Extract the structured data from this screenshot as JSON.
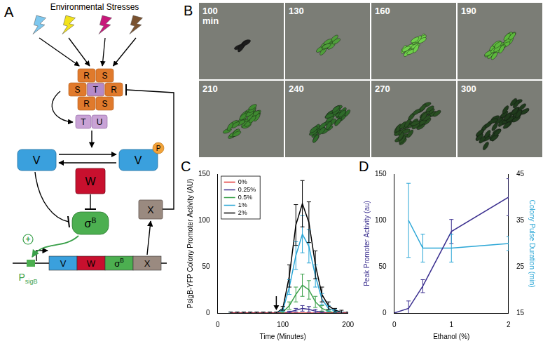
{
  "panels": {
    "A": {
      "label": "A",
      "title": "Environmental Stresses",
      "complex": [
        [
          "R",
          "S"
        ],
        [
          "S",
          "T",
          "R"
        ],
        [
          "R",
          "S"
        ]
      ],
      "partner": [
        "T",
        "U"
      ],
      "V": "V",
      "V_p": "V",
      "phosphate": "P",
      "W": "W",
      "X": "X",
      "sigma": {
        "text": "σ",
        "sup": "B"
      },
      "activation": "+",
      "promoter": {
        "text": "P",
        "sub": "sigB"
      },
      "genes": [
        {
          "text": "V"
        },
        {
          "text": "W"
        },
        {
          "text": "σ",
          "sup": "B"
        },
        {
          "text": "X"
        }
      ]
    },
    "B": {
      "label": "B",
      "frames": [
        "100 min",
        "130",
        "160",
        "190",
        "210",
        "240",
        "270",
        "300"
      ]
    },
    "C": {
      "label": "C"
    },
    "D": {
      "label": "D"
    }
  },
  "chart_data": [
    {
      "type": "line",
      "panel": "C",
      "x_label": "Time (Minutes)",
      "y_label": "PsigB-YFP Colony Promoter Activity (AU)",
      "x": [
        20,
        30,
        40,
        50,
        60,
        70,
        80,
        90,
        100,
        110,
        120,
        130,
        140,
        150,
        160,
        170,
        180,
        190,
        200
      ],
      "series": [
        {
          "name": "0%",
          "color": "#e03030",
          "values": [
            0,
            0,
            0,
            0,
            0,
            0,
            0,
            0,
            0,
            0,
            0,
            0,
            0,
            0,
            0,
            0,
            0,
            0,
            0
          ],
          "errors": [
            0,
            0,
            0,
            0,
            0,
            0,
            0,
            0,
            0,
            0,
            0,
            0,
            0,
            0,
            0,
            0,
            0,
            0,
            0
          ]
        },
        {
          "name": "0.25%",
          "color": "#3b2f8f",
          "values": [
            0,
            0,
            0,
            0,
            0,
            0,
            0,
            0,
            0,
            1,
            3,
            5,
            4,
            2,
            1,
            0,
            0,
            0,
            0
          ],
          "errors": [
            0,
            0,
            0,
            0,
            0,
            0,
            0,
            0,
            0,
            1,
            2,
            3,
            3,
            2,
            1,
            0,
            0,
            0,
            0
          ]
        },
        {
          "name": "0.5%",
          "color": "#3aa04a",
          "values": [
            0,
            0,
            0,
            0,
            0,
            0,
            0,
            0,
            1,
            8,
            20,
            30,
            25,
            12,
            5,
            2,
            0,
            0,
            0
          ],
          "errors": [
            0,
            0,
            0,
            0,
            0,
            0,
            0,
            0,
            1,
            4,
            8,
            12,
            10,
            6,
            3,
            1,
            1,
            0,
            0
          ]
        },
        {
          "name": "1%",
          "color": "#2aa6d6",
          "values": [
            0,
            0,
            0,
            0,
            0,
            0,
            0,
            0,
            3,
            28,
            62,
            85,
            72,
            40,
            15,
            5,
            2,
            0,
            0
          ],
          "errors": [
            1,
            1,
            1,
            1,
            1,
            1,
            1,
            1,
            1,
            8,
            15,
            20,
            18,
            12,
            6,
            3,
            2,
            1,
            1
          ]
        },
        {
          "name": "2%",
          "color": "#000000",
          "values": [
            0,
            0,
            0,
            0,
            0,
            0,
            0,
            0,
            5,
            40,
            95,
            118,
            98,
            52,
            20,
            8,
            3,
            1,
            0
          ],
          "errors": [
            1,
            1,
            1,
            1,
            1,
            1,
            1,
            1,
            2,
            12,
            22,
            25,
            22,
            15,
            8,
            4,
            2,
            2,
            1
          ]
        }
      ],
      "arrow": {
        "x": 90,
        "y": 3
      },
      "xlim": [
        0,
        200
      ],
      "xticks": [
        0,
        100,
        200
      ],
      "ylim": [
        0,
        150
      ],
      "yticks": [
        0,
        50,
        100,
        150
      ],
      "grid": false,
      "legend": "upper left"
    },
    {
      "type": "line",
      "panel": "D",
      "x_label": "Ethanol (%)",
      "y_label": "Peak Promoter Activity (au)",
      "y2_label": "Colony Pulse Duration (min)",
      "series": [
        {
          "color": "#3b2f8f",
          "axis": "y",
          "x": [
            0,
            0.25,
            0.5,
            1,
            2
          ],
          "values": [
            0,
            5,
            29,
            88,
            125
          ],
          "errors": [
            0,
            8,
            7,
            13,
            20
          ]
        },
        {
          "color": "#2aa6d6",
          "axis": "y2",
          "x": [
            0.25,
            0.5,
            1,
            2
          ],
          "values": [
            35,
            29,
            29,
            30
          ],
          "errors": [
            8,
            3,
            3,
            1.5
          ]
        }
      ],
      "xlim": [
        0,
        2
      ],
      "xticks": [
        0,
        1,
        2
      ],
      "ylim": [
        0,
        150
      ],
      "yticks": [
        0,
        50,
        100,
        150
      ],
      "y2lim": [
        15,
        45
      ],
      "y2ticks": [
        15,
        25,
        35,
        45
      ],
      "grid": false
    }
  ]
}
